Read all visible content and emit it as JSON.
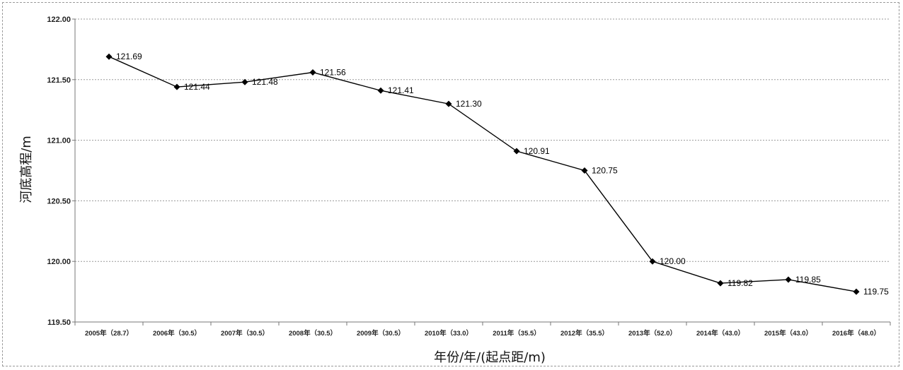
{
  "chart_data": {
    "type": "line",
    "title": "",
    "xlabel": "年份/年/(起点距/m)",
    "ylabel": "河底高程/m",
    "ylim": [
      119.5,
      122.0
    ],
    "yticks": [
      "122.00",
      "121.50",
      "121.00",
      "120.50",
      "120.00",
      "119.50"
    ],
    "grid": true,
    "categories": [
      "2005年（28.7）",
      "2006年（30.5）",
      "2007年（30.5）",
      "2008年（30.5）",
      "2009年（30.5）",
      "2010年（33.0）",
      "2011年（35.5）",
      "2012年（35.5）",
      "2013年（52.0）",
      "2014年（43.0）",
      "2015年（43.0）",
      "2016年（48.0）"
    ],
    "series": [
      {
        "values": [
          121.69,
          121.44,
          121.48,
          121.56,
          121.41,
          121.3,
          120.91,
          120.75,
          120.0,
          119.82,
          119.85,
          119.75
        ],
        "labels": [
          "121.69",
          "121.44",
          "121.48",
          "121.56",
          "121.41",
          "121.30",
          "120.91",
          "120.75",
          "120.00",
          "119.82",
          "119.85",
          "119.75"
        ]
      }
    ],
    "line_color": "#000000",
    "grid_color": "#9a9a9a"
  }
}
